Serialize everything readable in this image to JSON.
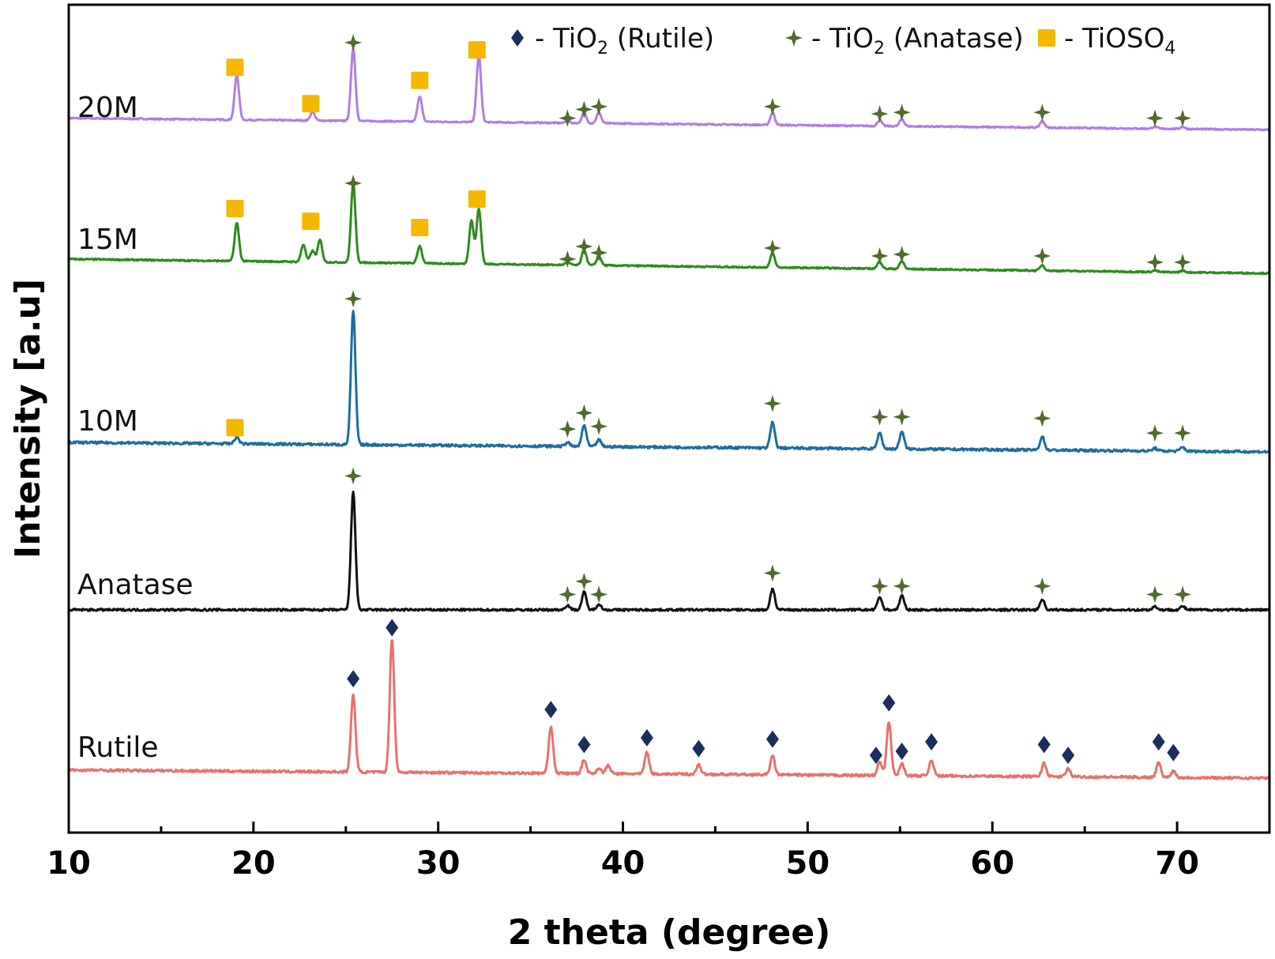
{
  "chart_data": {
    "type": "line",
    "xlabel": "2 theta (degree)",
    "ylabel": "Intensity [a.u]",
    "xlim": [
      10,
      75
    ],
    "xticks": [
      10,
      20,
      30,
      40,
      50,
      60,
      70
    ],
    "grid": false,
    "legend_placement": "top-right",
    "legend": [
      {
        "marker": "diamond",
        "text_main": "- TiO",
        "text_sub": "2",
        "text_rest": " (Rutile)",
        "color": "#1a2f5c"
      },
      {
        "marker": "star",
        "text_main": "- TiO",
        "text_sub": "2",
        "text_rest": " (Anatase)",
        "color": "#4f6b2d"
      },
      {
        "marker": "square",
        "text_main": "- TiOSO",
        "text_sub": "4",
        "text_rest": "",
        "color": "#f5b800"
      }
    ],
    "series": [
      {
        "name": "20M",
        "color": "#b07ee6",
        "base_start": 0.2,
        "base_end": 0.04,
        "peaks": [
          {
            "x": 19.1,
            "h": 0.62
          },
          {
            "x": 23.2,
            "h": 0.12
          },
          {
            "x": 25.4,
            "h": 1.0
          },
          {
            "x": 29.0,
            "h": 0.35
          },
          {
            "x": 32.2,
            "h": 0.92
          },
          {
            "x": 37.0,
            "h": 0.03
          },
          {
            "x": 37.9,
            "h": 0.14
          },
          {
            "x": 38.7,
            "h": 0.15
          },
          {
            "x": 48.1,
            "h": 0.17
          },
          {
            "x": 53.9,
            "h": 0.08
          },
          {
            "x": 55.1,
            "h": 0.1
          },
          {
            "x": 62.7,
            "h": 0.09
          },
          {
            "x": 68.8,
            "h": 0.03
          },
          {
            "x": 70.3,
            "h": 0.03
          }
        ],
        "markers": [
          {
            "type": "square",
            "x": 19.0,
            "lift": 0.9
          },
          {
            "type": "square",
            "x": 23.1,
            "lift": 0.4
          },
          {
            "type": "star",
            "x": 25.4,
            "lift": 1.24
          },
          {
            "type": "square",
            "x": 29.0,
            "lift": 0.72
          },
          {
            "type": "square",
            "x": 32.1,
            "lift": 1.14
          },
          {
            "type": "star",
            "x": 37.0,
            "lift": 0.2
          },
          {
            "type": "star",
            "x": 37.9,
            "lift": 0.32
          },
          {
            "type": "star",
            "x": 38.7,
            "lift": 0.36
          },
          {
            "type": "star",
            "x": 48.1,
            "lift": 0.36
          },
          {
            "type": "star",
            "x": 53.9,
            "lift": 0.26
          },
          {
            "type": "star",
            "x": 55.1,
            "lift": 0.28
          },
          {
            "type": "star",
            "x": 62.7,
            "lift": 0.28
          },
          {
            "type": "star",
            "x": 68.8,
            "lift": 0.2
          },
          {
            "type": "star",
            "x": 70.3,
            "lift": 0.2
          }
        ]
      },
      {
        "name": "15M",
        "color": "#2e8b1e",
        "base_start": 0.22,
        "base_end": 0.04,
        "peaks": [
          {
            "x": 19.1,
            "h": 0.48
          },
          {
            "x": 22.7,
            "h": 0.22
          },
          {
            "x": 23.2,
            "h": 0.14
          },
          {
            "x": 23.6,
            "h": 0.28
          },
          {
            "x": 25.4,
            "h": 1.0
          },
          {
            "x": 29.0,
            "h": 0.22
          },
          {
            "x": 31.8,
            "h": 0.55
          },
          {
            "x": 32.2,
            "h": 0.7
          },
          {
            "x": 37.0,
            "h": 0.04
          },
          {
            "x": 37.9,
            "h": 0.2
          },
          {
            "x": 38.7,
            "h": 0.12
          },
          {
            "x": 48.1,
            "h": 0.18
          },
          {
            "x": 53.9,
            "h": 0.09
          },
          {
            "x": 55.1,
            "h": 0.1
          },
          {
            "x": 62.7,
            "h": 0.07
          },
          {
            "x": 68.8,
            "h": 0.02
          },
          {
            "x": 70.3,
            "h": 0.02
          }
        ],
        "markers": [
          {
            "type": "square",
            "x": 19.0,
            "lift": 0.86
          },
          {
            "type": "square",
            "x": 23.1,
            "lift": 0.7
          },
          {
            "type": "star",
            "x": 25.4,
            "lift": 1.18
          },
          {
            "type": "square",
            "x": 29.0,
            "lift": 0.62
          },
          {
            "type": "square",
            "x": 32.1,
            "lift": 0.98
          },
          {
            "type": "star",
            "x": 37.0,
            "lift": 0.22
          },
          {
            "type": "star",
            "x": 37.9,
            "lift": 0.38
          },
          {
            "type": "star",
            "x": 38.7,
            "lift": 0.3
          },
          {
            "type": "star",
            "x": 48.1,
            "lift": 0.36
          },
          {
            "type": "star",
            "x": 53.9,
            "lift": 0.26
          },
          {
            "type": "star",
            "x": 55.1,
            "lift": 0.28
          },
          {
            "type": "star",
            "x": 62.7,
            "lift": 0.26
          },
          {
            "type": "star",
            "x": 68.8,
            "lift": 0.18
          },
          {
            "type": "star",
            "x": 70.3,
            "lift": 0.18
          }
        ]
      },
      {
        "name": "10M",
        "color": "#1f6d9c",
        "base_start": 0.07,
        "base_end": 0.0,
        "peaks": [
          {
            "x": 19.1,
            "h": 0.05
          },
          {
            "x": 25.4,
            "h": 1.0
          },
          {
            "x": 37.0,
            "h": 0.03
          },
          {
            "x": 37.9,
            "h": 0.16
          },
          {
            "x": 38.7,
            "h": 0.05
          },
          {
            "x": 48.1,
            "h": 0.19
          },
          {
            "x": 53.9,
            "h": 0.12
          },
          {
            "x": 55.1,
            "h": 0.13
          },
          {
            "x": 62.7,
            "h": 0.1
          },
          {
            "x": 68.8,
            "h": 0.02
          },
          {
            "x": 70.3,
            "h": 0.03
          }
        ],
        "markers": [
          {
            "type": "square",
            "x": 19.0,
            "lift": 0.18
          },
          {
            "type": "star",
            "x": 25.4,
            "lift": 1.14
          },
          {
            "type": "star",
            "x": 37.0,
            "lift": 0.17
          },
          {
            "type": "star",
            "x": 37.9,
            "lift": 0.29
          },
          {
            "type": "star",
            "x": 38.7,
            "lift": 0.19
          },
          {
            "type": "star",
            "x": 48.1,
            "lift": 0.36
          },
          {
            "type": "star",
            "x": 53.9,
            "lift": 0.26
          },
          {
            "type": "star",
            "x": 55.1,
            "lift": 0.26
          },
          {
            "type": "star",
            "x": 62.7,
            "lift": 0.25
          },
          {
            "type": "star",
            "x": 68.8,
            "lift": 0.14
          },
          {
            "type": "star",
            "x": 70.3,
            "lift": 0.14
          }
        ]
      },
      {
        "name": "Anatase",
        "color": "#111111",
        "base_start": 0.0,
        "base_end": 0.0,
        "peaks": [
          {
            "x": 25.4,
            "h": 1.0
          },
          {
            "x": 37.0,
            "h": 0.04
          },
          {
            "x": 37.9,
            "h": 0.15
          },
          {
            "x": 38.7,
            "h": 0.05
          },
          {
            "x": 48.1,
            "h": 0.18
          },
          {
            "x": 53.9,
            "h": 0.11
          },
          {
            "x": 55.1,
            "h": 0.12
          },
          {
            "x": 62.7,
            "h": 0.09
          },
          {
            "x": 68.8,
            "h": 0.03
          },
          {
            "x": 70.3,
            "h": 0.03
          }
        ],
        "markers": [
          {
            "type": "star",
            "x": 25.4,
            "lift": 1.13
          },
          {
            "type": "star",
            "x": 37.0,
            "lift": 0.13
          },
          {
            "type": "star",
            "x": 37.9,
            "lift": 0.24
          },
          {
            "type": "star",
            "x": 38.7,
            "lift": 0.13
          },
          {
            "type": "star",
            "x": 48.1,
            "lift": 0.31
          },
          {
            "type": "star",
            "x": 53.9,
            "lift": 0.2
          },
          {
            "type": "star",
            "x": 55.1,
            "lift": 0.2
          },
          {
            "type": "star",
            "x": 62.7,
            "lift": 0.2
          },
          {
            "type": "star",
            "x": 68.8,
            "lift": 0.13
          },
          {
            "type": "star",
            "x": 70.3,
            "lift": 0.13
          }
        ]
      },
      {
        "name": "Rutile",
        "color": "#e8706e",
        "base_start": 0.06,
        "base_end": 0.0,
        "peaks": [
          {
            "x": 25.4,
            "h": 0.58
          },
          {
            "x": 27.5,
            "h": 1.0
          },
          {
            "x": 36.1,
            "h": 0.35
          },
          {
            "x": 37.9,
            "h": 0.1
          },
          {
            "x": 38.7,
            "h": 0.04
          },
          {
            "x": 39.2,
            "h": 0.06
          },
          {
            "x": 41.3,
            "h": 0.16
          },
          {
            "x": 44.1,
            "h": 0.07
          },
          {
            "x": 48.1,
            "h": 0.14
          },
          {
            "x": 53.9,
            "h": 0.1
          },
          {
            "x": 54.4,
            "h": 0.4
          },
          {
            "x": 55.1,
            "h": 0.09
          },
          {
            "x": 56.7,
            "h": 0.12
          },
          {
            "x": 62.8,
            "h": 0.1
          },
          {
            "x": 64.1,
            "h": 0.06
          },
          {
            "x": 69.0,
            "h": 0.11
          },
          {
            "x": 69.8,
            "h": 0.05
          }
        ],
        "markers": [
          {
            "type": "diamond",
            "x": 25.4,
            "lift": 0.74
          },
          {
            "type": "diamond",
            "x": 27.5,
            "lift": 1.12
          },
          {
            "type": "diamond",
            "x": 36.1,
            "lift": 0.51
          },
          {
            "type": "diamond",
            "x": 37.9,
            "lift": 0.25
          },
          {
            "type": "diamond",
            "x": 41.3,
            "lift": 0.3
          },
          {
            "type": "diamond",
            "x": 44.1,
            "lift": 0.22
          },
          {
            "type": "diamond",
            "x": 48.1,
            "lift": 0.29
          },
          {
            "type": "diamond",
            "x": 53.7,
            "lift": 0.17
          },
          {
            "type": "diamond",
            "x": 54.4,
            "lift": 0.56
          },
          {
            "type": "diamond",
            "x": 55.1,
            "lift": 0.2
          },
          {
            "type": "diamond",
            "x": 56.7,
            "lift": 0.27
          },
          {
            "type": "diamond",
            "x": 62.8,
            "lift": 0.25
          },
          {
            "type": "diamond",
            "x": 64.1,
            "lift": 0.17
          },
          {
            "type": "diamond",
            "x": 69.0,
            "lift": 0.27
          },
          {
            "type": "diamond",
            "x": 69.8,
            "lift": 0.19
          }
        ]
      }
    ]
  },
  "colors": {
    "rutile_marker": "#1a2f5c",
    "anatase_marker": "#4f6b2d",
    "tioso4_marker": "#f5b800"
  }
}
